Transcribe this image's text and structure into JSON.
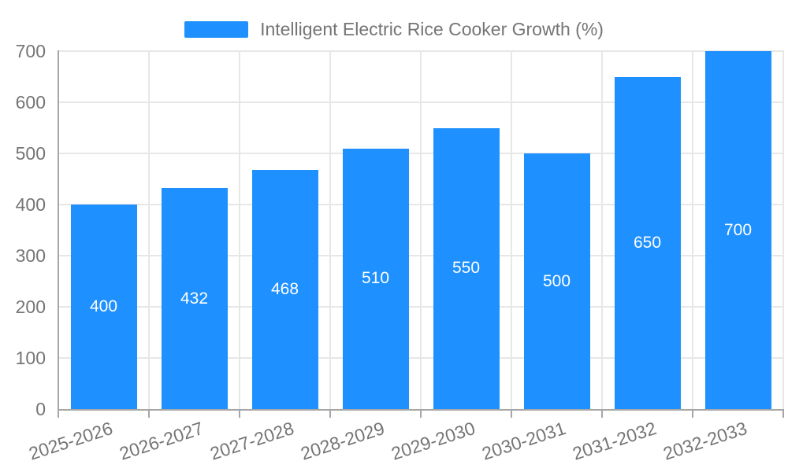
{
  "chart_data": {
    "type": "bar",
    "legend_label": "Intelligent Electric Rice Cooker Growth (%)",
    "legend_position": "top-center",
    "categories": [
      "2025-2026",
      "2026-2027",
      "2027-2028",
      "2028-2029",
      "2029-2030",
      "2030-2031",
      "2031-2032",
      "2032-2033"
    ],
    "values": [
      400,
      432,
      468,
      510,
      550,
      500,
      650,
      700
    ],
    "yticks": [
      0,
      100,
      200,
      300,
      400,
      500,
      600,
      700
    ],
    "ylim": [
      0,
      700
    ],
    "grid": true,
    "bar_color": "#1E90FF",
    "value_label_color": "#FFFFFF",
    "axis_text_color": "#757575",
    "gridline_color": "#E7E7E7",
    "axis_line_color": "#A6A6A6",
    "background_color": "#FFFFFF"
  }
}
